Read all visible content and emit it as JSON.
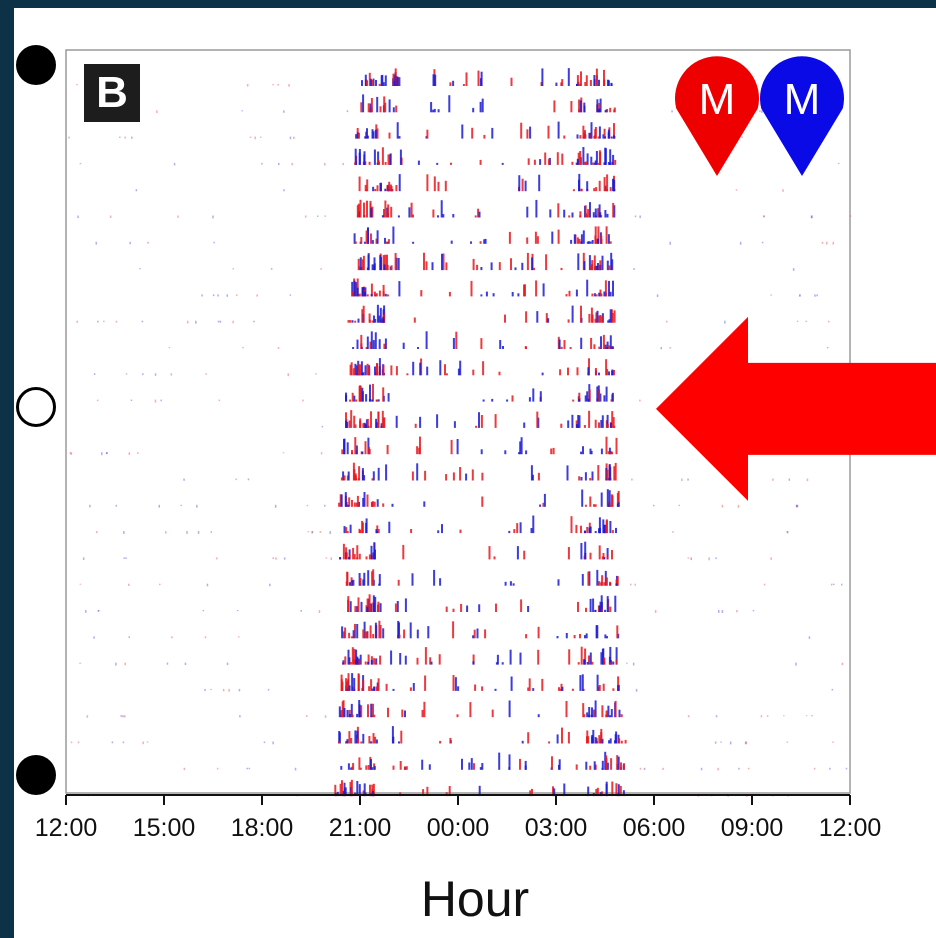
{
  "panel_label": "B",
  "legend": {
    "pins": [
      {
        "label": "M",
        "color": "#ee0000"
      },
      {
        "label": "M",
        "color": "#0a0ae6"
      }
    ]
  },
  "row_markers": [
    {
      "row": 1,
      "style": "filled"
    },
    {
      "row": 14,
      "style": "open"
    },
    {
      "row": 28,
      "style": "filled"
    }
  ],
  "arrow": {
    "color": "#ff0000",
    "direction": "left",
    "points_to_row": 14
  },
  "chart_data": {
    "type": "raster",
    "xlabel": "Hour",
    "x_ticks": [
      "12:00",
      "15:00",
      "18:00",
      "21:00",
      "00:00",
      "03:00",
      "06:00",
      "09:00",
      "12:00"
    ],
    "x_range_hours": [
      0,
      24
    ],
    "rows": 28,
    "series_colors": {
      "red": "#e8191e",
      "blue": "#1b1bd6"
    },
    "active_window_hours": {
      "start_per_row": [
        9.0,
        8.9,
        8.8,
        8.8,
        8.8,
        8.8,
        8.7,
        8.9,
        8.7,
        8.6,
        8.6,
        8.6,
        8.5,
        8.5,
        8.4,
        8.4,
        8.3,
        8.4,
        8.3,
        8.4,
        8.4,
        8.4,
        8.4,
        8.4,
        8.3,
        8.3,
        8.3,
        8.2
      ],
      "end_per_row": [
        16.7,
        16.8,
        16.8,
        16.8,
        16.8,
        16.8,
        16.7,
        16.8,
        16.8,
        16.9,
        16.8,
        16.8,
        16.8,
        16.8,
        16.9,
        16.8,
        16.9,
        16.9,
        16.8,
        16.9,
        16.8,
        16.9,
        16.9,
        16.9,
        17.0,
        17.1,
        17.1,
        17.1
      ]
    }
  }
}
